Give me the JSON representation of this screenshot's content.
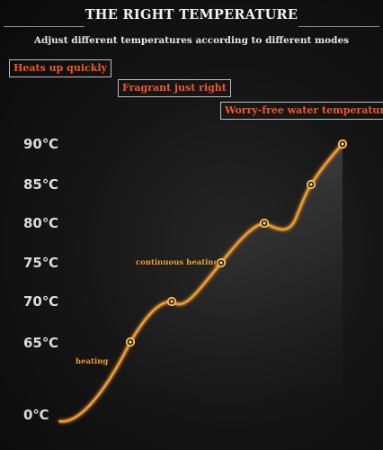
{
  "header": {
    "title": "THE RIGHT TEMPERATURE",
    "subtitle": "Adjust different temperatures according to different modes"
  },
  "tags": [
    {
      "text": "Heats up quickly"
    },
    {
      "text": "Fragrant just right"
    },
    {
      "text": "Worry-free water temperature"
    }
  ],
  "chart_data": {
    "type": "line",
    "y_ticks": [
      "90℃",
      "85℃",
      "80℃",
      "75℃",
      "70℃",
      "65℃",
      "0℃"
    ],
    "points": [
      {
        "y": 65
      },
      {
        "y": 70
      },
      {
        "y": 75
      },
      {
        "y": 80
      },
      {
        "y": 85
      },
      {
        "y": 90
      }
    ],
    "annotations": [
      "heating",
      "continuous heating"
    ],
    "line_color": "#f0a030",
    "accent_color": "#f0582a"
  }
}
